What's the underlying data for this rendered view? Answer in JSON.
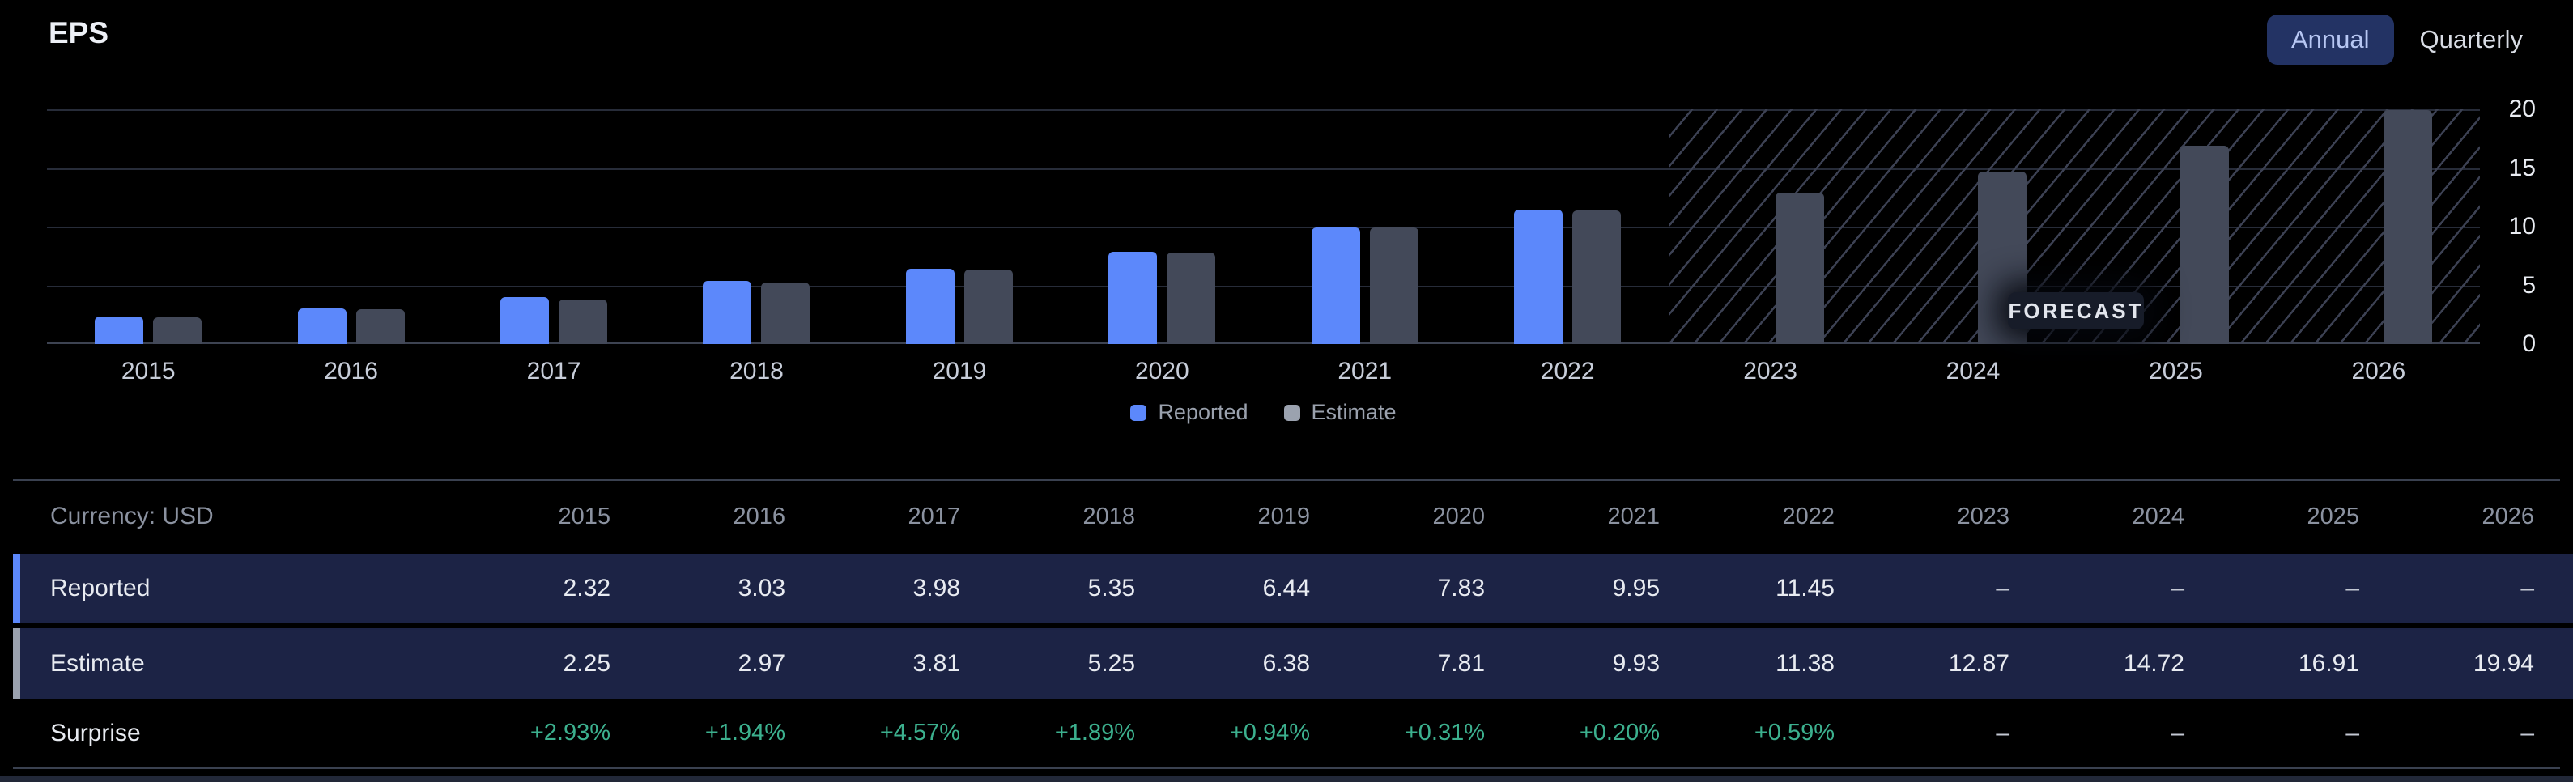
{
  "header": {
    "title": "EPS",
    "toggle": {
      "annual_label": "Annual",
      "quarterly_label": "Quarterly",
      "selected": "Annual"
    }
  },
  "chart_data": {
    "type": "bar",
    "title": "EPS",
    "categories": [
      "2015",
      "2016",
      "2017",
      "2018",
      "2019",
      "2020",
      "2021",
      "2022",
      "2023",
      "2024",
      "2025",
      "2026"
    ],
    "series": [
      {
        "name": "Reported",
        "color": "#5c88fb",
        "legend_color": "#5c88fb",
        "values": [
          2.32,
          3.03,
          3.98,
          5.35,
          6.44,
          7.83,
          9.95,
          11.45,
          null,
          null,
          null,
          null
        ]
      },
      {
        "name": "Estimate",
        "color": "#434959",
        "legend_color": "#9ba2af",
        "values": [
          2.25,
          2.97,
          3.81,
          5.25,
          6.38,
          7.81,
          9.93,
          11.38,
          12.87,
          14.72,
          16.91,
          19.94
        ]
      }
    ],
    "ylim": [
      0,
      20
    ],
    "yticks": [
      20,
      15,
      10,
      5,
      0
    ],
    "grid": "horizontal",
    "legend_position": "bottom-center",
    "forecast": {
      "label": "FORECAST",
      "start_category": "2023",
      "style": "diagonal-hatch"
    }
  },
  "table": {
    "currency_label": "Currency: USD",
    "columns": [
      "2015",
      "2016",
      "2017",
      "2018",
      "2019",
      "2020",
      "2021",
      "2022",
      "2023",
      "2024",
      "2025",
      "2026"
    ],
    "rows": [
      {
        "label": "Reported",
        "accent": "#5c88fb",
        "highlight": true,
        "values": [
          "2.32",
          "3.03",
          "3.98",
          "5.35",
          "6.44",
          "7.83",
          "9.95",
          "11.45",
          "–",
          "–",
          "–",
          "–"
        ]
      },
      {
        "label": "Estimate",
        "accent": "#9ba2af",
        "highlight": true,
        "values": [
          "2.25",
          "2.97",
          "3.81",
          "5.25",
          "6.38",
          "7.81",
          "9.93",
          "11.38",
          "12.87",
          "14.72",
          "16.91",
          "19.94"
        ]
      },
      {
        "label": "Surprise",
        "accent": null,
        "highlight": false,
        "values": [
          "+2.93%",
          "+1.94%",
          "+4.57%",
          "+1.89%",
          "+0.94%",
          "+0.31%",
          "+0.20%",
          "+0.59%",
          "–",
          "–",
          "–",
          "–"
        ]
      }
    ]
  },
  "colors": {
    "background": "#000000",
    "reported_bar": "#5c88fb",
    "estimate_bar": "#434959",
    "row_highlight": "#1c2345",
    "surprise_positive": "#3cb08e",
    "gridline": "#272c39",
    "hatch_line": "#3c4153",
    "annual_button_bg": "#233364"
  }
}
